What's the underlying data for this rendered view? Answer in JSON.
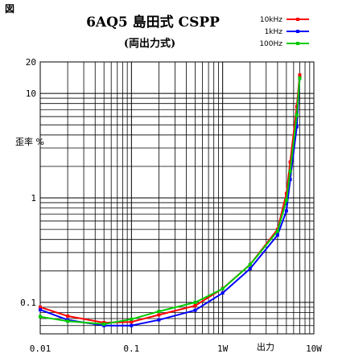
{
  "chart_data": {
    "type": "line",
    "corner_label": "図",
    "title": "6AQ5 島田式 CSPP",
    "subtitle": "(両出力式)",
    "xlabel": "出力",
    "ylabel": "歪率 %",
    "x_scale": "log",
    "y_scale": "log",
    "xlim": [
      0.01,
      10
    ],
    "ylim": [
      0.05,
      20
    ],
    "x_ticks": [
      {
        "value": 0.01,
        "label": "0.01"
      },
      {
        "value": 0.1,
        "label": "0.1"
      },
      {
        "value": 1,
        "label": "1W"
      },
      {
        "value": 10,
        "label": "10W"
      }
    ],
    "y_ticks": [
      {
        "value": 20,
        "label": "20"
      },
      {
        "value": 10,
        "label": "10"
      },
      {
        "value": 1,
        "label": "1"
      },
      {
        "value": 0.1,
        "label": "0.1"
      }
    ],
    "grid": true,
    "legend_position": "top-right",
    "series": [
      {
        "name": "10kHz",
        "color": "#ff0000",
        "x": [
          0.01,
          0.02,
          0.05,
          0.1,
          0.2,
          0.5,
          1,
          2,
          4,
          5,
          5.5,
          6.5,
          7
        ],
        "y": [
          0.09,
          0.074,
          0.064,
          0.065,
          0.076,
          0.093,
          0.136,
          0.23,
          0.5,
          1.1,
          2.2,
          7.5,
          15
        ]
      },
      {
        "name": "1kHz",
        "color": "#0000ff",
        "x": [
          0.01,
          0.02,
          0.05,
          0.1,
          0.2,
          0.5,
          1,
          2,
          4,
          5,
          5.5,
          6.5,
          7
        ],
        "y": [
          0.085,
          0.068,
          0.06,
          0.06,
          0.068,
          0.084,
          0.123,
          0.21,
          0.44,
          0.75,
          1.5,
          4.8,
          14
        ]
      },
      {
        "name": "100Hz",
        "color": "#00cc00",
        "x": [
          0.01,
          0.02,
          0.05,
          0.1,
          0.2,
          0.5,
          1,
          2,
          4,
          5,
          5.5,
          6.5,
          7
        ],
        "y": [
          0.073,
          0.066,
          0.062,
          0.069,
          0.082,
          0.1,
          0.135,
          0.23,
          0.48,
          0.95,
          1.8,
          6.2,
          14
        ]
      }
    ]
  }
}
